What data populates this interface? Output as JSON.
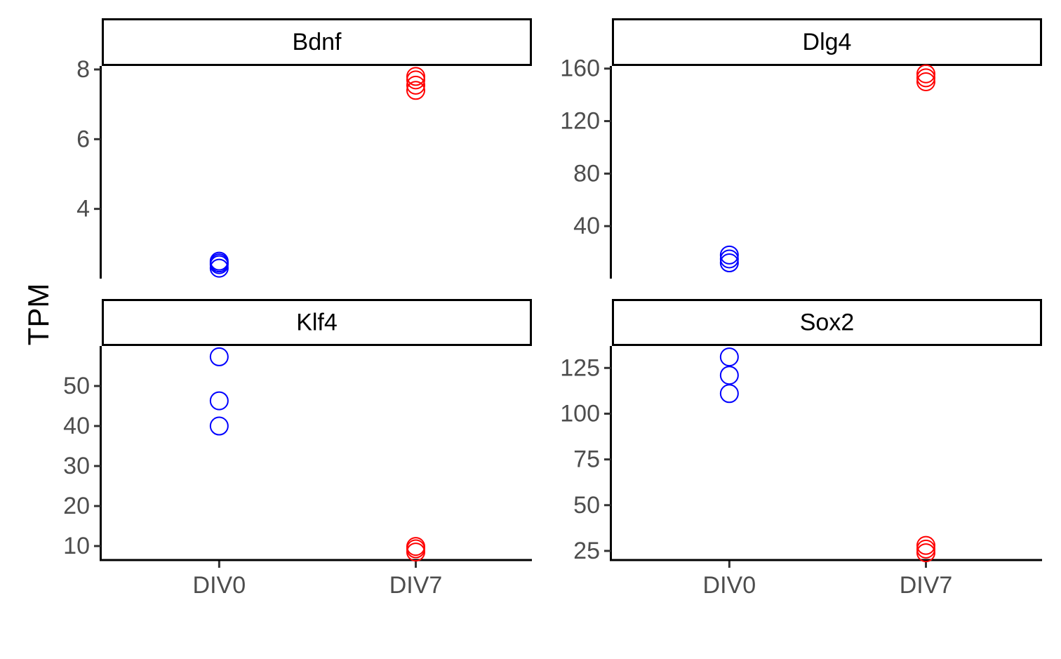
{
  "chart_data": {
    "type": "scatter",
    "layout": "facet-grid 2x2",
    "ylabel": "TPM",
    "xlabel": "",
    "categories": [
      "DIV0",
      "DIV7"
    ],
    "colors": {
      "DIV0": "#0000ff",
      "DIV7": "#ff0000"
    },
    "marker": "open-circle",
    "grid": false,
    "legend": "none",
    "facets": [
      {
        "name": "Bdnf",
        "ylim": [
          2.0,
          8.1
        ],
        "yticks": [
          4,
          6,
          8
        ],
        "series": [
          {
            "name": "DIV0",
            "values": [
              2.3,
              2.4,
              2.45,
              2.5
            ]
          },
          {
            "name": "DIV7",
            "values": [
              7.4,
              7.55,
              7.7,
              7.8
            ]
          }
        ]
      },
      {
        "name": "Dlg4",
        "ylim": [
          0,
          162
        ],
        "yticks": [
          40,
          80,
          120,
          160
        ],
        "series": [
          {
            "name": "DIV0",
            "values": [
              12,
              15,
              18
            ]
          },
          {
            "name": "DIV7",
            "values": [
              150,
              153,
              156
            ]
          }
        ]
      },
      {
        "name": "Klf4",
        "ylim": [
          6.5,
          60
        ],
        "yticks": [
          10,
          20,
          30,
          40,
          50
        ],
        "series": [
          {
            "name": "DIV0",
            "values": [
              40,
              46.3,
              57.3
            ]
          },
          {
            "name": "DIV7",
            "values": [
              8.5,
              9.3,
              9.9
            ]
          }
        ]
      },
      {
        "name": "Sox2",
        "ylim": [
          20,
          137
        ],
        "yticks": [
          25,
          50,
          75,
          100,
          125
        ],
        "series": [
          {
            "name": "DIV0",
            "values": [
              111,
              121,
              131
            ]
          },
          {
            "name": "DIV7",
            "values": [
              24,
              26,
              28
            ]
          }
        ]
      }
    ]
  }
}
